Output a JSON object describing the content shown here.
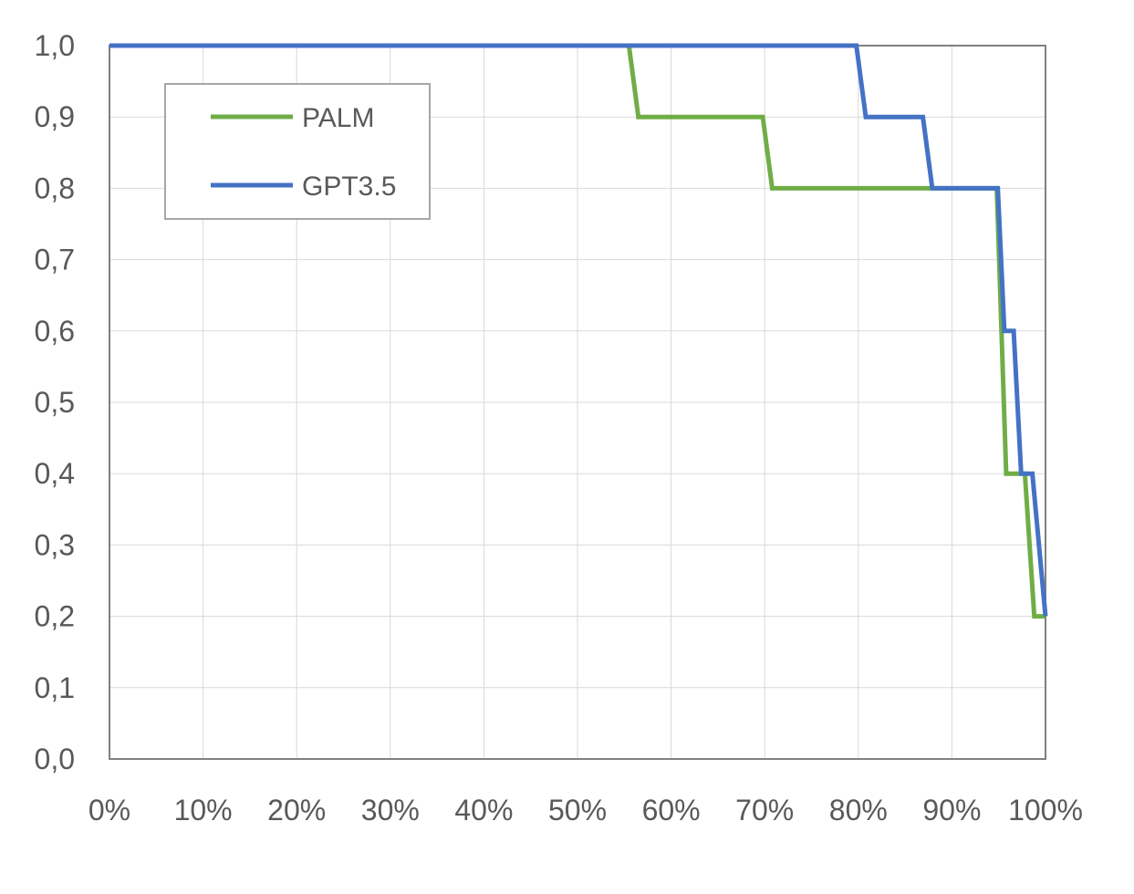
{
  "chart_data": {
    "type": "line",
    "title": "",
    "xlabel": "",
    "ylabel": "",
    "xlim": [
      0,
      100
    ],
    "ylim": [
      0,
      1
    ],
    "x_ticks": [
      0,
      10,
      20,
      30,
      40,
      50,
      60,
      70,
      80,
      90,
      100
    ],
    "x_tick_labels": [
      "0%",
      "10%",
      "20%",
      "30%",
      "40%",
      "50%",
      "60%",
      "70%",
      "80%",
      "90%",
      "100%"
    ],
    "y_ticks": [
      0,
      0.1,
      0.2,
      0.3,
      0.4,
      0.5,
      0.6,
      0.7,
      0.8,
      0.9,
      1.0
    ],
    "y_tick_labels": [
      "0,0",
      "0,1",
      "0,2",
      "0,3",
      "0,4",
      "0,5",
      "0,6",
      "0,7",
      "0,8",
      "0,9",
      "1,0"
    ],
    "grid": true,
    "legend_position": "top-left",
    "series": [
      {
        "name": "PALM",
        "color": "#70AD47",
        "points": [
          [
            0,
            1.0
          ],
          [
            55.5,
            1.0
          ],
          [
            56.5,
            0.9
          ],
          [
            69.8,
            0.9
          ],
          [
            70.8,
            0.8
          ],
          [
            94.8,
            0.8
          ],
          [
            95.8,
            0.4
          ],
          [
            97.8,
            0.4
          ],
          [
            98.8,
            0.2
          ],
          [
            100,
            0.2
          ]
        ]
      },
      {
        "name": "GPT3.5",
        "color": "#4472C4",
        "points": [
          [
            0,
            1.0
          ],
          [
            79.8,
            1.0
          ],
          [
            80.8,
            0.9
          ],
          [
            86.9,
            0.9
          ],
          [
            87.9,
            0.8
          ],
          [
            94.9,
            0.8
          ],
          [
            95.6,
            0.6
          ],
          [
            96.6,
            0.6
          ],
          [
            97.4,
            0.4
          ],
          [
            98.6,
            0.4
          ],
          [
            100,
            0.2
          ]
        ]
      }
    ]
  }
}
